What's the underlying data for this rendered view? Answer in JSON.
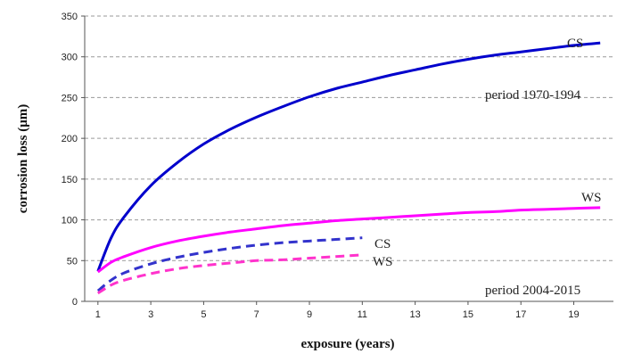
{
  "chart_data": {
    "type": "line",
    "xlabel": "exposure (years)",
    "ylabel": "corrosion loss (μm)",
    "xlim": [
      0.5,
      20.5
    ],
    "ylim": [
      0,
      350
    ],
    "xticks": [
      1,
      3,
      5,
      7,
      9,
      11,
      13,
      15,
      17,
      19
    ],
    "yticks": [
      0,
      50,
      100,
      150,
      200,
      250,
      300,
      350
    ],
    "grid": "horizontal dashed",
    "annotations": [
      "period 1970-1994",
      "period 2004-2015"
    ],
    "series": [
      {
        "name": "CS",
        "color": "#0000cc",
        "style": "solid",
        "x": [
          1,
          1.5,
          2,
          3,
          4,
          5,
          6,
          7,
          8,
          9,
          10,
          11,
          12,
          13,
          14,
          15,
          16,
          17,
          18,
          19,
          20
        ],
        "y": [
          37,
          78,
          104,
          142,
          170,
          193,
          211,
          226,
          239,
          251,
          261,
          269,
          277,
          284,
          291,
          297,
          302,
          306,
          310,
          314,
          317
        ]
      },
      {
        "name": "WS",
        "color": "#ff00ff",
        "style": "solid",
        "x": [
          1,
          1.5,
          2,
          3,
          4,
          5,
          6,
          7,
          8,
          9,
          10,
          11,
          12,
          13,
          14,
          15,
          16,
          17,
          18,
          19,
          20
        ],
        "y": [
          36,
          48,
          55,
          66,
          74,
          80,
          85,
          89,
          93,
          96,
          99,
          101,
          103,
          105,
          107,
          109,
          110,
          112,
          113,
          114,
          115
        ]
      },
      {
        "name": "CS",
        "color": "#3333cc",
        "style": "dashed",
        "x": [
          1,
          1.5,
          2,
          3,
          4,
          5,
          6,
          7,
          8,
          9,
          10,
          11
        ],
        "y": [
          13,
          26,
          35,
          46,
          54,
          60,
          65,
          69,
          72,
          74,
          76,
          78
        ]
      },
      {
        "name": "WS",
        "color": "#ff33cc",
        "style": "dashed",
        "x": [
          1,
          1.5,
          2,
          3,
          4,
          5,
          6,
          7,
          8,
          9,
          10,
          11
        ],
        "y": [
          10,
          20,
          26,
          34,
          40,
          44,
          47,
          50,
          51,
          53,
          55,
          57
        ]
      }
    ]
  }
}
